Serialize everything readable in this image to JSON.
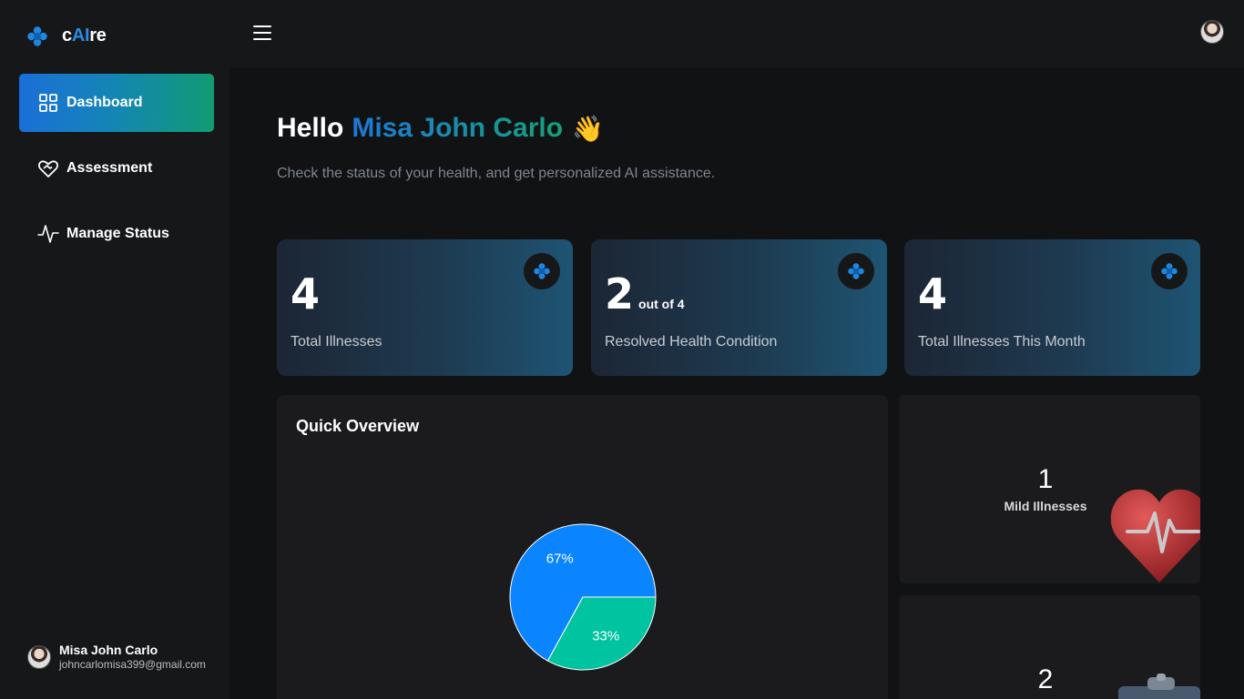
{
  "brand": {
    "prefix": "c",
    "ai": "AI",
    "suffix": "re"
  },
  "nav": [
    {
      "label": "Dashboard",
      "icon": "dashboard-grid-icon",
      "active": true
    },
    {
      "label": "Assessment",
      "icon": "heart-hand-icon",
      "active": false
    },
    {
      "label": "Manage Status",
      "icon": "pulse-icon",
      "active": false
    }
  ],
  "user": {
    "name": "Misa John Carlo",
    "email": "johncarlomisa399@gmail.com"
  },
  "greeting": {
    "hello": "Hello",
    "name": "Misa John Carlo",
    "emoji": "👋"
  },
  "subtitle": "Check the status of your health, and get personalized AI assistance.",
  "stats": [
    {
      "value": "4",
      "extra": "",
      "label": "Total Illnesses",
      "icon": "medical-cross-icon"
    },
    {
      "value": "2",
      "extra": "out of 4",
      "label": "Resolved Health Condition",
      "icon": "medical-cross-icon"
    },
    {
      "value": "4",
      "extra": "",
      "label": "Total Illnesses This Month",
      "icon": "medical-cross-icon"
    }
  ],
  "overview": {
    "title": "Quick Overview"
  },
  "chart_data": {
    "type": "pie",
    "slices": [
      {
        "label": "67%",
        "value": 67,
        "color": "#0a84ff"
      },
      {
        "label": "33%",
        "value": 33,
        "color": "#00c4a0"
      }
    ]
  },
  "side_cards": [
    {
      "value": "1",
      "label": "Mild Illnesses",
      "image": "heart-pulse-illustration"
    },
    {
      "value": "2",
      "label": "",
      "image": "clipboard-illustration"
    }
  ],
  "colors": {
    "accent_blue": "#1c78d8",
    "accent_green": "#16a07a",
    "sidebar_bg": "#161719",
    "main_bg": "#111214"
  }
}
